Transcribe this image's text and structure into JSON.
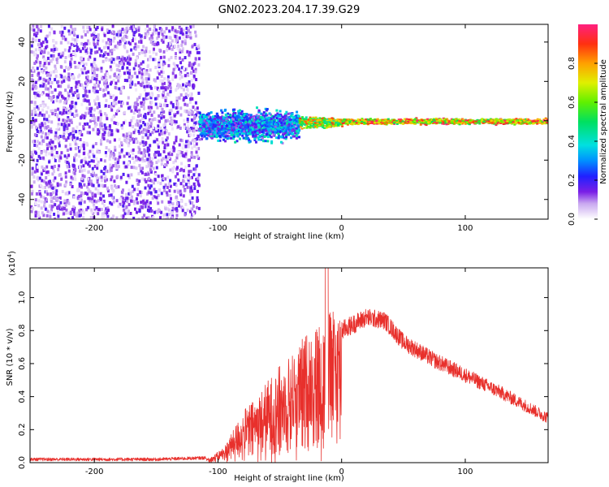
{
  "figure": {
    "title": "GN02.2023.204.17.39.G29"
  },
  "chart_data": [
    {
      "type": "heatmap",
      "xlabel": "Height of straight line (km)",
      "ylabel": "Frequency (Hz)",
      "xlim": [
        -252,
        167
      ],
      "ylim": [
        -50,
        49
      ],
      "x_ticks": [
        -200,
        -100,
        0,
        100
      ],
      "y_ticks": [
        -40,
        -20,
        0,
        20,
        40
      ],
      "colorbar": {
        "label": "Normalized spectral amplitude",
        "range": [
          0,
          1
        ],
        "ticks": [
          0.0,
          0.2,
          0.4,
          0.6,
          0.8
        ],
        "tick_labels": [
          "0.0",
          "0.2",
          "0.4",
          "0.6",
          "0.8"
        ]
      },
      "regions": [
        {
          "x_range": [
            -252,
            -116
          ],
          "freq_range": [
            -50,
            49
          ],
          "amplitude": [
            0.02,
            0.18
          ],
          "description": "broadband noise"
        },
        {
          "x_range": [
            -116,
            -35
          ],
          "freq_range": [
            -12,
            8
          ],
          "amplitude": [
            0.1,
            0.45
          ],
          "description": "spread signal"
        },
        {
          "x_range": [
            -35,
            0
          ],
          "freq_range": [
            -4,
            3
          ],
          "amplitude": [
            0.4,
            0.9
          ],
          "description": "narrowing signal"
        },
        {
          "x_range": [
            0,
            167
          ],
          "freq_range": [
            -2,
            2
          ],
          "amplitude": [
            0.5,
            1.0
          ],
          "description": "narrow strong tone near 0 Hz"
        }
      ]
    },
    {
      "type": "line",
      "xlabel": "Height of straight line (km)",
      "ylabel": "SNR (10 * v/v)",
      "y_multiplier_label": "(x10",
      "y_multiplier_exponent": "4",
      "y_multiplier_close": ")",
      "xlim": [
        -252,
        167
      ],
      "ylim": [
        0,
        1.18
      ],
      "x_ticks": [
        -200,
        -100,
        0,
        100
      ],
      "y_ticks": [
        0.0,
        0.2,
        0.4,
        0.6,
        0.8,
        1.0
      ],
      "y_tick_labels": [
        "0.0",
        "0.2",
        "0.4",
        "0.6",
        "0.8",
        "1.0"
      ],
      "grid": false,
      "series": [
        {
          "color": "#e8302c",
          "envelope": [
            {
              "x": -252,
              "y": 0.02
            },
            {
              "x": -150,
              "y": 0.02
            },
            {
              "x": -105,
              "y": 0.03
            },
            {
              "x": -95,
              "y": 0.08
            },
            {
              "x": -80,
              "y": 0.25
            },
            {
              "x": -60,
              "y": 0.4
            },
            {
              "x": -40,
              "y": 0.55
            },
            {
              "x": -20,
              "y": 0.7
            },
            {
              "x": 0,
              "y": 0.8
            },
            {
              "x": 20,
              "y": 0.88
            },
            {
              "x": 35,
              "y": 0.86
            },
            {
              "x": 50,
              "y": 0.73
            },
            {
              "x": 75,
              "y": 0.62
            },
            {
              "x": 100,
              "y": 0.53
            },
            {
              "x": 130,
              "y": 0.42
            },
            {
              "x": 150,
              "y": 0.34
            },
            {
              "x": 167,
              "y": 0.27
            }
          ],
          "peak": {
            "x": -12,
            "y": 1.18
          }
        }
      ]
    }
  ]
}
